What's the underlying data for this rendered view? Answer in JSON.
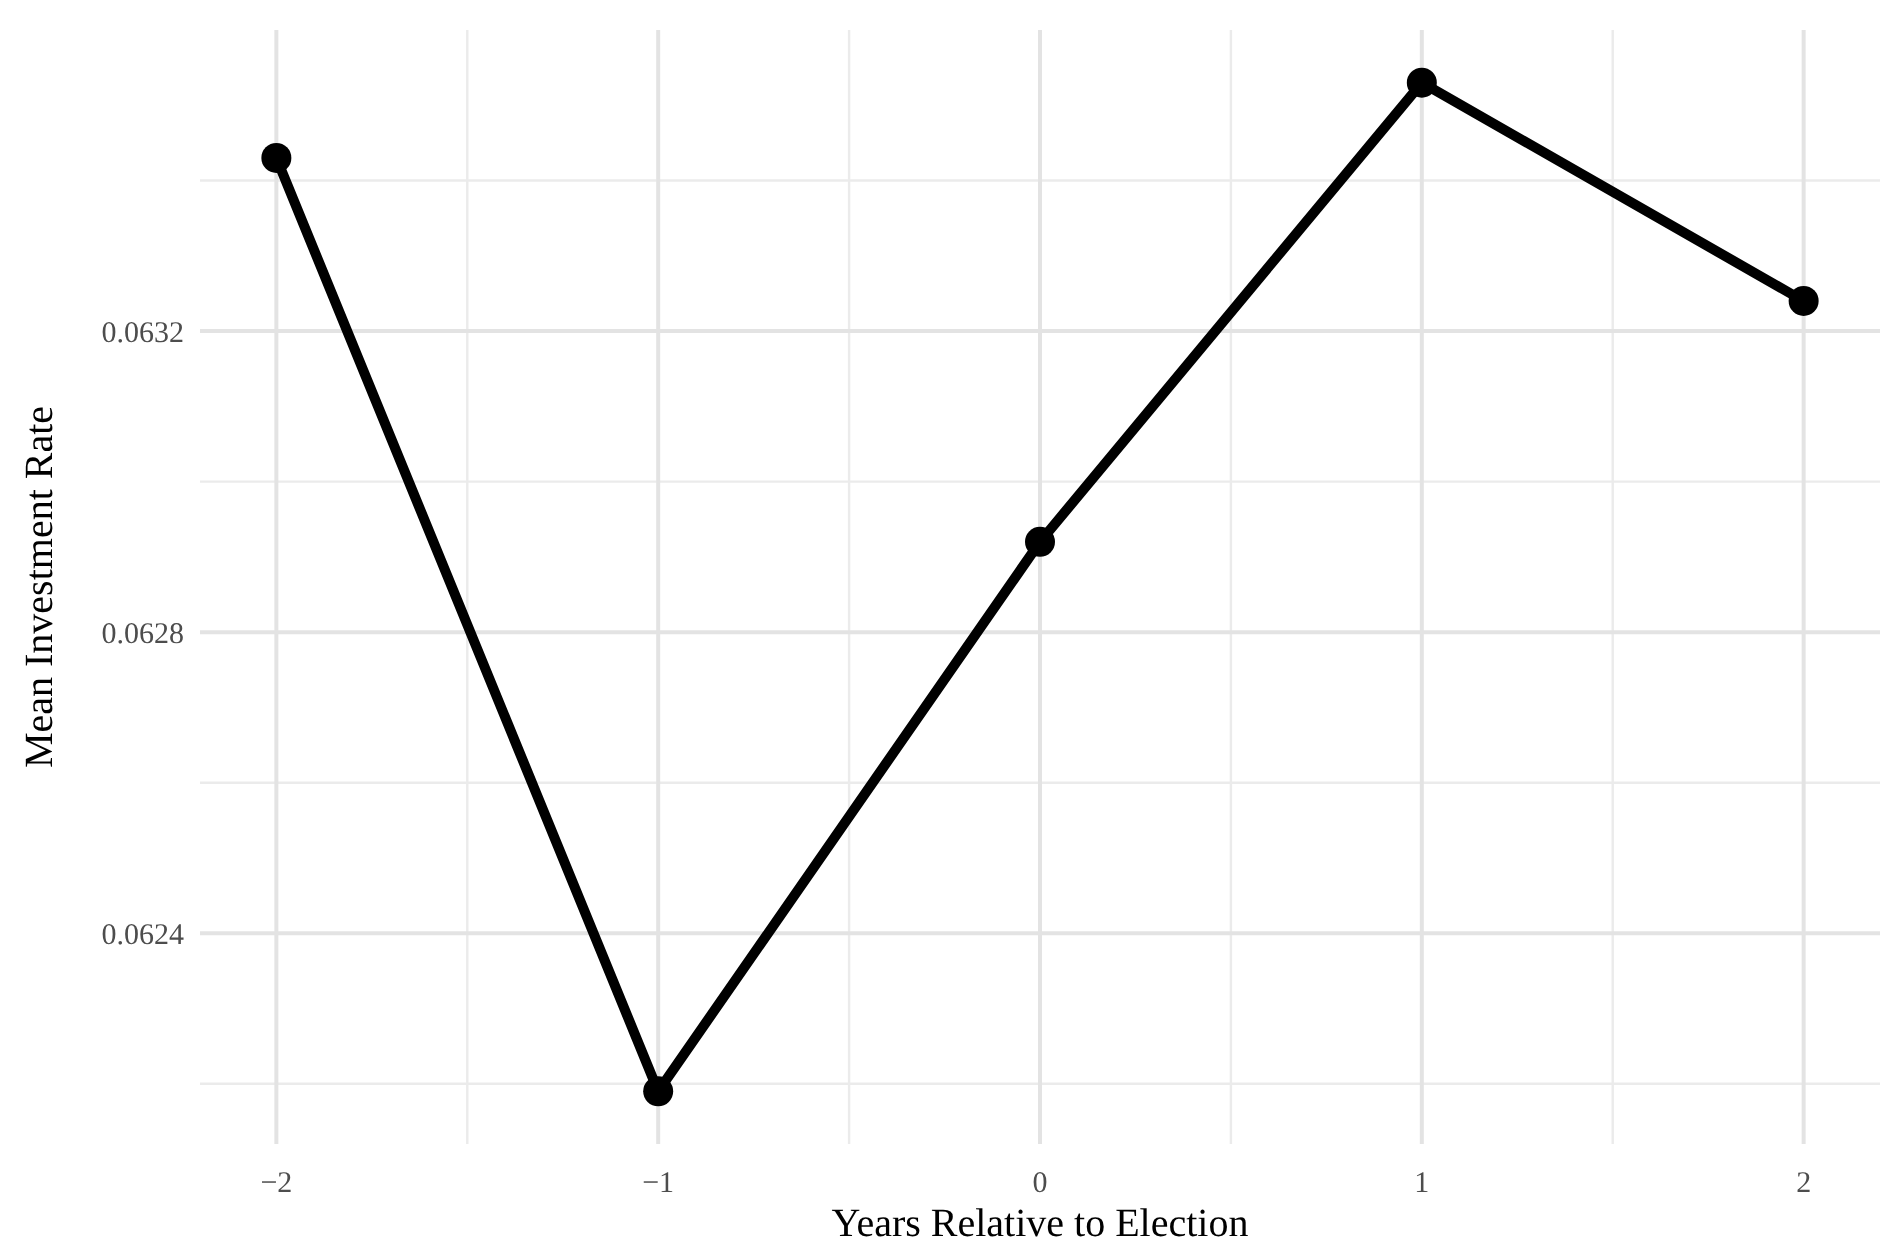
{
  "chart_data": {
    "type": "line",
    "xlabel": "Years Relative to Election",
    "ylabel": "Mean Investment Rate",
    "x": [
      -2,
      -1,
      0,
      1,
      2
    ],
    "series": [
      {
        "color": "#000000",
        "values": [
          0.06343,
          0.06219,
          0.06292,
          0.06353,
          0.06324
        ]
      }
    ],
    "xlim": [
      -2.2,
      2.2
    ],
    "xticks": [
      {
        "value": -2,
        "label": "−2"
      },
      {
        "value": -1,
        "label": "−1"
      },
      0,
      1,
      2
    ],
    "ylim": [
      0.06212,
      0.0636
    ],
    "yticks": [
      0.0624,
      0.0628,
      0.0632
    ],
    "grid": true,
    "marker": "circle",
    "line_style": "solid"
  }
}
